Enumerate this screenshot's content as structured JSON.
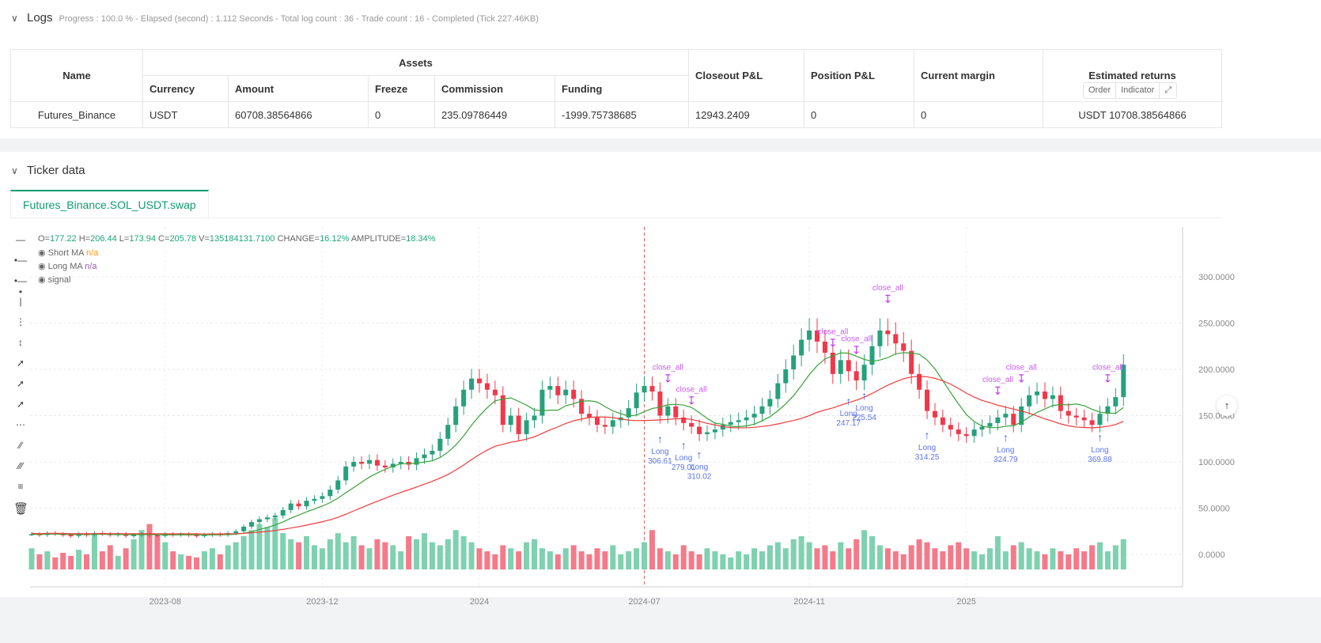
{
  "logs": {
    "title": "Logs",
    "summary": "Progress : 100.0 % - Elapsed (second) :  1.112  Seconds - Total log count : 36 - Trade count : 16 - Completed (Tick 227.46KB)"
  },
  "assets_table": {
    "group_header": "Assets",
    "headers": {
      "name": "Name",
      "currency": "Currency",
      "amount": "Amount",
      "freeze": "Freeze",
      "commission": "Commission",
      "funding": "Funding",
      "closeout": "Closeout P&L",
      "position": "Position P&L",
      "margin": "Current margin",
      "returns": "Estimated returns"
    },
    "row": {
      "name": "Futures_Binance",
      "currency": "USDT",
      "amount": "60708.38564866",
      "freeze": "0",
      "commission": "235.09786449",
      "funding": "-1999.75738685",
      "closeout": "12943.2409",
      "position": "0",
      "margin": "0",
      "returns": "USDT 10708.38564866"
    }
  },
  "ticker": {
    "title": "Ticker data",
    "tab": "Futures_Binance.SOL_USDT.swap"
  },
  "legend": {
    "o": "177.22",
    "h": "206.44",
    "l": "173.94",
    "c": "205.78",
    "v": "135184131.7100",
    "change": "16.12%",
    "amplitude": "18.34%",
    "short_ma": "Short MA",
    "short_val": "n/a",
    "long_ma": "Long MA",
    "long_val": "n/a",
    "signal": "signal"
  },
  "buttons": {
    "order": "Order",
    "indicator": "Indicator"
  },
  "colors": {
    "up": "#26a17b",
    "down": "#f0384a",
    "short_ma": "#3aa13a",
    "long_ma": "#f03a3a",
    "long_marker": "#3b5cf0",
    "close_marker": "#c23cf0"
  },
  "chart_data": {
    "type": "candlestick",
    "ylim": [
      0,
      330
    ],
    "y_ticks": [
      "0.0000",
      "50.0000",
      "100.0000",
      "150.0000",
      "200.0000",
      "250.0000",
      "300.0000"
    ],
    "y_tick_values": [
      0,
      50,
      100,
      150,
      200,
      250,
      300
    ],
    "x_ticks": [
      {
        "label": "2023-08",
        "index": 17
      },
      {
        "label": "2023-12",
        "index": 37
      },
      {
        "label": "2024",
        "index": 57
      },
      {
        "label": "2024-07",
        "index": 78
      },
      {
        "label": "2024-11",
        "index": 99
      },
      {
        "label": "2025",
        "index": 119
      }
    ],
    "closes": [
      22,
      21,
      23,
      22,
      21,
      20,
      22,
      21,
      23,
      22,
      21,
      22,
      20,
      21,
      22,
      21,
      20,
      22,
      21,
      22,
      21,
      20,
      21,
      22,
      21,
      23,
      25,
      30,
      35,
      38,
      40,
      42,
      48,
      55,
      52,
      58,
      60,
      63,
      70,
      80,
      95,
      100,
      98,
      102,
      96,
      94,
      98,
      100,
      97,
      104,
      108,
      112,
      125,
      140,
      160,
      178,
      190,
      185,
      178,
      172,
      140,
      150,
      130,
      145,
      150,
      178,
      182,
      172,
      178,
      168,
      152,
      148,
      140,
      138,
      145,
      148,
      158,
      175,
      182,
      176,
      150,
      160,
      148,
      142,
      138,
      130,
      132,
      135,
      140,
      143,
      145,
      148,
      152,
      160,
      168,
      185,
      200,
      215,
      232,
      242,
      230,
      218,
      195,
      210,
      198,
      188,
      205,
      225,
      242,
      238,
      228,
      220,
      195,
      178,
      155,
      148,
      140,
      135,
      130,
      128,
      135,
      138,
      142,
      148,
      152,
      140,
      160,
      172,
      176,
      168,
      172,
      155,
      150,
      148,
      145,
      140,
      152,
      160,
      170,
      205
    ],
    "volumes": [
      14,
      10,
      12,
      8,
      11,
      9,
      13,
      10,
      24,
      12,
      16,
      9,
      14,
      20,
      26,
      30,
      22,
      18,
      12,
      10,
      9,
      8,
      12,
      14,
      10,
      16,
      18,
      22,
      26,
      30,
      28,
      34,
      24,
      20,
      18,
      22,
      16,
      14,
      20,
      24,
      18,
      22,
      16,
      14,
      20,
      18,
      16,
      12,
      22,
      20,
      24,
      18,
      16,
      20,
      26,
      22,
      18,
      14,
      12,
      10,
      16,
      14,
      12,
      18,
      20,
      14,
      12,
      10,
      14,
      16,
      12,
      10,
      14,
      12,
      16,
      10,
      12,
      14,
      18,
      26,
      14,
      12,
      10,
      16,
      12,
      10,
      14,
      12,
      10,
      8,
      12,
      10,
      14,
      12,
      16,
      18,
      14,
      20,
      22,
      18,
      14,
      16,
      12,
      18,
      14,
      20,
      26,
      22,
      16,
      14,
      12,
      10,
      16,
      20,
      18,
      14,
      12,
      16,
      18,
      14,
      12,
      10,
      14,
      22,
      12,
      16,
      18,
      14,
      12,
      10,
      14,
      12,
      10,
      14,
      12,
      16,
      18,
      12,
      16,
      20
    ],
    "vertical_marker_index": 78,
    "long_signals": [
      {
        "index": 80,
        "label": "Long",
        "price": "306.61"
      },
      {
        "index": 83,
        "label": "Long",
        "price": "279.01"
      },
      {
        "index": 85,
        "label": "Long",
        "price": "310.02"
      },
      {
        "index": 104,
        "label": "Long",
        "price": "247.17"
      },
      {
        "index": 106,
        "label": "Long",
        "price": "225.54"
      },
      {
        "index": 114,
        "label": "Long",
        "price": "314.25"
      },
      {
        "index": 124,
        "label": "Long",
        "price": "324.79"
      },
      {
        "index": 136,
        "label": "Long",
        "price": "369.88"
      }
    ],
    "close_signals": [
      {
        "index": 81,
        "label": "close_all"
      },
      {
        "index": 84,
        "label": "close_all"
      },
      {
        "index": 102,
        "label": "close_all"
      },
      {
        "index": 105,
        "label": "close_all"
      },
      {
        "index": 109,
        "label": "close_all"
      },
      {
        "index": 123,
        "label": "close_all"
      },
      {
        "index": 126,
        "label": "close_all"
      },
      {
        "index": 137,
        "label": "close_all"
      }
    ]
  }
}
